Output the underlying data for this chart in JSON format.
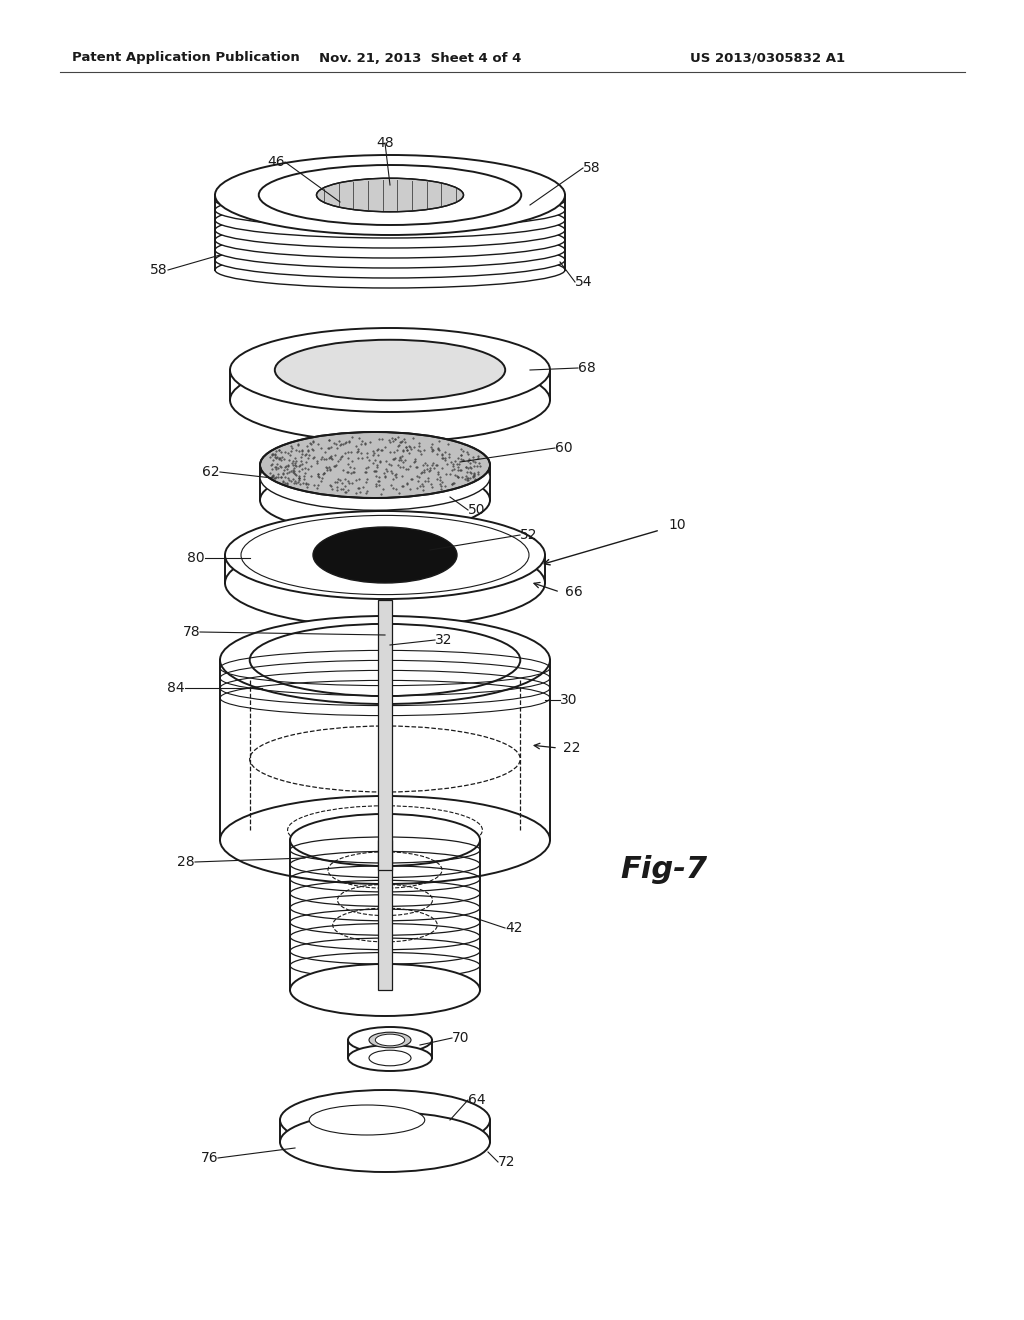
{
  "background_color": "#ffffff",
  "header_left": "Patent Application Publication",
  "header_middle": "Nov. 21, 2013  Sheet 4 of 4",
  "header_right": "US 2013/0305832 A1",
  "fig_label": "Fig-7"
}
